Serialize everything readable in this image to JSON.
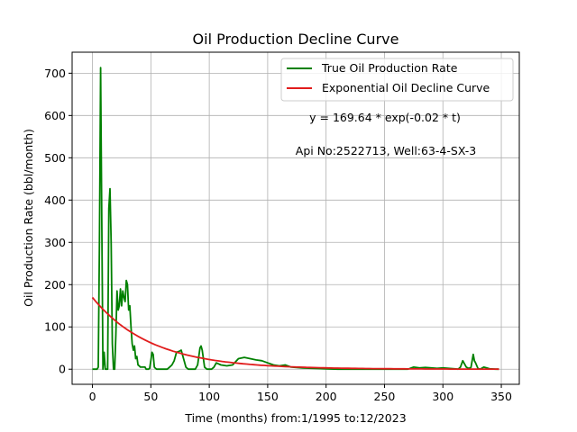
{
  "chart_data": {
    "type": "line",
    "title": "Oil Production Decline Curve",
    "xlabel": "Time (months) from:1/1995 to:12/2023",
    "ylabel": "Oil Production Rate (bbl/month)",
    "xlim": [
      -17.4,
      365.4
    ],
    "ylim": [
      -35.7,
      749.7
    ],
    "xticks": [
      0,
      50,
      100,
      150,
      200,
      250,
      300,
      350
    ],
    "yticks": [
      0,
      100,
      200,
      300,
      400,
      500,
      600,
      700
    ],
    "grid": true,
    "legend": "top-right",
    "annotations": [
      "y = 169.64 * exp(-0.02 * t)",
      "Api No:2522713, Well:63-4-SX-3"
    ],
    "series": [
      {
        "name": "True Oil Production Rate",
        "color": "#008000",
        "kind": "observed",
        "x": [
          0,
          1,
          2,
          3,
          4,
          5,
          6,
          7,
          8,
          9,
          10,
          11,
          12,
          13,
          14,
          15,
          16,
          17,
          18,
          19,
          20,
          21,
          22,
          23,
          24,
          25,
          26,
          27,
          28,
          29,
          30,
          31,
          32,
          33,
          34,
          35,
          36,
          37,
          38,
          39,
          40,
          41,
          42,
          43,
          44,
          45,
          46,
          47,
          48,
          49,
          50,
          51,
          52,
          53,
          54,
          55,
          56,
          57,
          58,
          59,
          60,
          62,
          64,
          66,
          68,
          70,
          72,
          74,
          76,
          78,
          80,
          82,
          84,
          86,
          88,
          90,
          92,
          93,
          94,
          96,
          98,
          100,
          102,
          104,
          106,
          110,
          115,
          120,
          125,
          130,
          135,
          140,
          145,
          150,
          155,
          160,
          165,
          170,
          175,
          180,
          190,
          200,
          210,
          220,
          230,
          240,
          250,
          260,
          270,
          275,
          280,
          285,
          290,
          295,
          300,
          305,
          310,
          313,
          315,
          317,
          318,
          320,
          322,
          324,
          326,
          327,
          328,
          330,
          332,
          335,
          340,
          345,
          348
        ],
        "y": [
          0,
          0,
          0,
          0,
          0,
          5,
          300,
          713,
          350,
          0,
          40,
          0,
          0,
          0,
          380,
          427,
          300,
          60,
          0,
          0,
          80,
          185,
          140,
          150,
          190,
          150,
          185,
          170,
          160,
          210,
          200,
          140,
          150,
          100,
          60,
          45,
          55,
          25,
          30,
          10,
          8,
          5,
          5,
          5,
          5,
          5,
          0,
          0,
          0,
          2,
          20,
          40,
          35,
          5,
          2,
          0,
          0,
          0,
          0,
          0,
          0,
          0,
          0,
          5,
          10,
          20,
          40,
          42,
          45,
          25,
          5,
          0,
          0,
          0,
          0,
          10,
          50,
          55,
          45,
          5,
          0,
          0,
          0,
          5,
          15,
          10,
          8,
          10,
          25,
          28,
          25,
          22,
          20,
          15,
          10,
          8,
          10,
          5,
          4,
          3,
          2,
          1,
          0,
          0,
          0,
          0,
          0,
          0,
          0,
          5,
          3,
          4,
          3,
          2,
          3,
          2,
          1,
          0,
          5,
          20,
          15,
          5,
          2,
          4,
          35,
          20,
          15,
          2,
          0,
          5,
          1,
          0,
          0
        ]
      },
      {
        "name": "Exponential Oil Decline Curve",
        "color": "#e11c1c",
        "kind": "model",
        "params": {
          "a": 169.64,
          "b": 0.02
        },
        "x_range": [
          0,
          348
        ],
        "step": 3
      }
    ]
  }
}
